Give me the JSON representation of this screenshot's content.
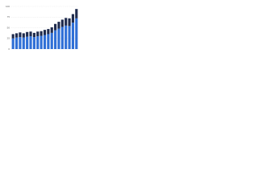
{
  "chart_data": {
    "type": "stacked_bar",
    "categories": [
      null,
      null,
      null,
      null,
      null,
      null,
      null,
      null,
      null,
      null,
      null,
      null,
      null,
      null,
      null,
      null,
      null,
      null,
      null
    ],
    "series": [
      {
        "color": "#2f6fd6",
        "values": [
          25,
          27,
          28,
          27,
          29,
          30,
          28,
          30,
          31,
          33,
          35,
          38,
          44,
          48,
          52,
          55,
          54,
          62,
          72
        ]
      },
      {
        "color": "#1f2b4d",
        "values": [
          10,
          10,
          11,
          10,
          11,
          11,
          10,
          11,
          11,
          12,
          12,
          13,
          15,
          16,
          17,
          18,
          18,
          20,
          22
        ]
      }
    ],
    "ylim": [
      0,
      100
    ],
    "yticks": [
      0,
      25,
      50,
      75,
      100
    ],
    "grid": true
  }
}
